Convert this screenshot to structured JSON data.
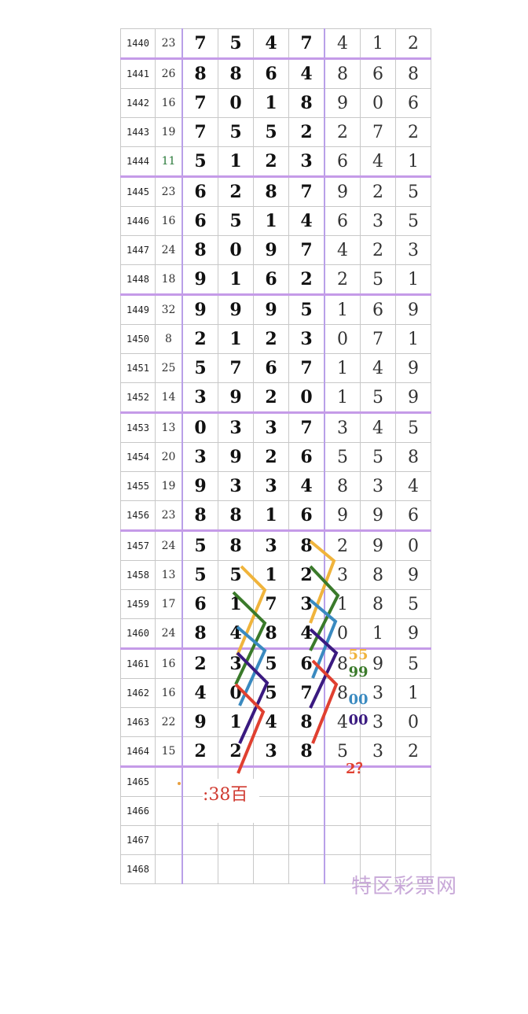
{
  "table": {
    "rows": [
      {
        "issue": "1440",
        "sum": "23",
        "digits": [
          "7",
          "5",
          "4",
          "7",
          "4",
          "1",
          "2"
        ]
      },
      {
        "issue": "1441",
        "sum": "26",
        "digits": [
          "8",
          "8",
          "6",
          "4",
          "8",
          "6",
          "8"
        ]
      },
      {
        "issue": "1442",
        "sum": "16",
        "digits": [
          "7",
          "0",
          "1",
          "8",
          "9",
          "0",
          "6"
        ]
      },
      {
        "issue": "1443",
        "sum": "19",
        "digits": [
          "7",
          "5",
          "5",
          "2",
          "2",
          "7",
          "2"
        ]
      },
      {
        "issue": "1444",
        "sum": "11",
        "digits": [
          "5",
          "1",
          "2",
          "3",
          "6",
          "4",
          "1"
        ]
      },
      {
        "issue": "1445",
        "sum": "23",
        "digits": [
          "6",
          "2",
          "8",
          "7",
          "9",
          "2",
          "5"
        ]
      },
      {
        "issue": "1446",
        "sum": "16",
        "digits": [
          "6",
          "5",
          "1",
          "4",
          "6",
          "3",
          "5"
        ]
      },
      {
        "issue": "1447",
        "sum": "24",
        "digits": [
          "8",
          "0",
          "9",
          "7",
          "4",
          "2",
          "3"
        ]
      },
      {
        "issue": "1448",
        "sum": "18",
        "digits": [
          "9",
          "1",
          "6",
          "2",
          "2",
          "5",
          "1"
        ]
      },
      {
        "issue": "1449",
        "sum": "32",
        "digits": [
          "9",
          "9",
          "9",
          "5",
          "1",
          "6",
          "9"
        ]
      },
      {
        "issue": "1450",
        "sum": "8",
        "digits": [
          "2",
          "1",
          "2",
          "3",
          "0",
          "7",
          "1"
        ]
      },
      {
        "issue": "1451",
        "sum": "25",
        "digits": [
          "5",
          "7",
          "6",
          "7",
          "1",
          "4",
          "9"
        ]
      },
      {
        "issue": "1452",
        "sum": "14",
        "digits": [
          "3",
          "9",
          "2",
          "0",
          "1",
          "5",
          "9"
        ]
      },
      {
        "issue": "1453",
        "sum": "13",
        "digits": [
          "0",
          "3",
          "3",
          "7",
          "3",
          "4",
          "5"
        ]
      },
      {
        "issue": "1454",
        "sum": "20",
        "digits": [
          "3",
          "9",
          "2",
          "6",
          "5",
          "5",
          "8"
        ]
      },
      {
        "issue": "1455",
        "sum": "19",
        "digits": [
          "9",
          "3",
          "3",
          "4",
          "8",
          "3",
          "4"
        ]
      },
      {
        "issue": "1456",
        "sum": "23",
        "digits": [
          "8",
          "8",
          "1",
          "6",
          "9",
          "9",
          "6"
        ]
      },
      {
        "issue": "1457",
        "sum": "24",
        "digits": [
          "5",
          "8",
          "3",
          "8",
          "2",
          "9",
          "0"
        ]
      },
      {
        "issue": "1458",
        "sum": "13",
        "digits": [
          "5",
          "5",
          "1",
          "2",
          "3",
          "8",
          "9"
        ]
      },
      {
        "issue": "1459",
        "sum": "17",
        "digits": [
          "6",
          "1",
          "7",
          "3",
          "1",
          "8",
          "5"
        ]
      },
      {
        "issue": "1460",
        "sum": "24",
        "digits": [
          "8",
          "4",
          "8",
          "4",
          "0",
          "1",
          "9"
        ]
      },
      {
        "issue": "1461",
        "sum": "16",
        "digits": [
          "2",
          "3",
          "5",
          "6",
          "8",
          "9",
          "5"
        ]
      },
      {
        "issue": "1462",
        "sum": "16",
        "digits": [
          "4",
          "0",
          "5",
          "7",
          "8",
          "3",
          "1"
        ]
      },
      {
        "issue": "1463",
        "sum": "22",
        "digits": [
          "9",
          "1",
          "4",
          "8",
          "4",
          "3",
          "0"
        ]
      },
      {
        "issue": "1464",
        "sum": "15",
        "digits": [
          "2",
          "2",
          "3",
          "8",
          "5",
          "3",
          "2"
        ]
      },
      {
        "issue": "1465",
        "sum": "",
        "digits": [
          "",
          "",
          "",
          "",
          "",
          "",
          ""
        ]
      },
      {
        "issue": "1466",
        "sum": "",
        "digits": [
          "",
          "",
          "",
          "",
          "",
          "",
          ""
        ]
      },
      {
        "issue": "1467",
        "sum": "",
        "digits": [
          "",
          "",
          "",
          "",
          "",
          "",
          ""
        ]
      },
      {
        "issue": "1468",
        "sum": "",
        "digits": [
          "",
          "",
          "",
          "",
          "",
          "",
          ""
        ]
      }
    ],
    "separator_after": [
      "1440",
      "1444",
      "1448",
      "1452",
      "1456",
      "1460",
      "1464"
    ],
    "highlight_sum_color": {
      "1444": "#2a7a3a"
    }
  },
  "trend_colors": {
    "yellow": "#f0b43c",
    "green": "#3a7a2a",
    "blue": "#3a8ac0",
    "purple": "#3a1a80",
    "red": "#e04030"
  },
  "annotations": {
    "yellow": "55",
    "green": "99",
    "blue": "00",
    "purple": "00",
    "red": "2？",
    "note": ":38百"
  },
  "watermark": "特区彩票网"
}
